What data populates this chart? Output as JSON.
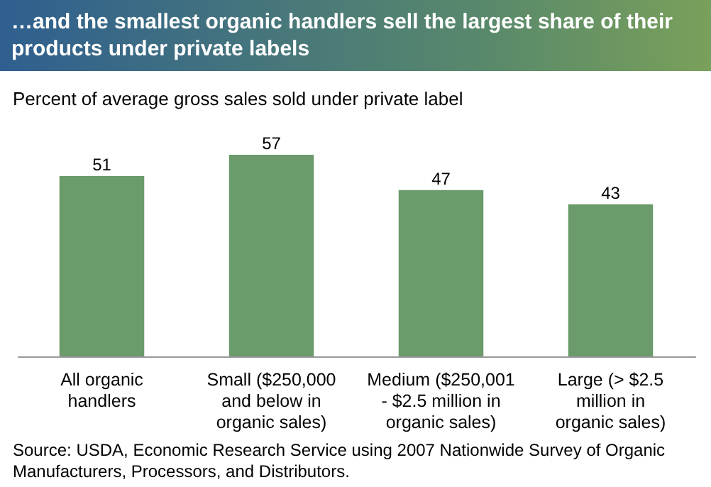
{
  "chart_data": {
    "type": "bar",
    "title": "…and the smallest organic handlers sell the largest share of their products under private labels",
    "ylabel": "Percent of average gross sales sold under private label",
    "categories": [
      "All organic handlers",
      "Small ($250,000 and below in organic sales)",
      "Medium ($250,001 - $2.5 million in organic sales)",
      "Large (> $2.5 million in organic sales)"
    ],
    "values": [
      51,
      57,
      47,
      43
    ],
    "color": "#6b9a6b",
    "data_labels": true,
    "annotations": [
      "Source: USDA, Economic Research Service using 2007 Nationwide Survey of Organic Manufacturers, Processors, and Distributors."
    ]
  }
}
